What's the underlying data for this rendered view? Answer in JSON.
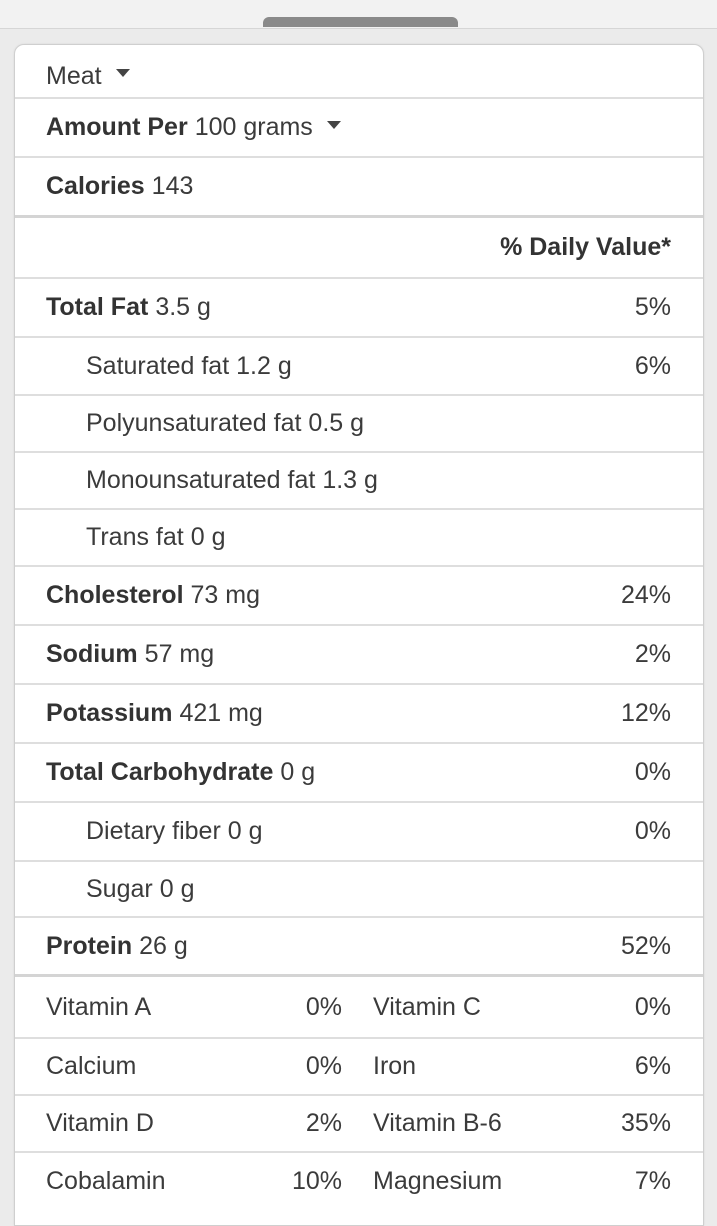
{
  "food_select": {
    "value": "Meat"
  },
  "serving": {
    "label": "Amount Per",
    "value": "100 grams"
  },
  "calories": {
    "label": "Calories",
    "value": "143"
  },
  "daily_value_header": "% Daily Value*",
  "nutrients": [
    {
      "label": "Total Fat",
      "amount": "3.5 g",
      "pct": "5%"
    },
    {
      "label": "Saturated fat",
      "amount": "1.2 g",
      "pct": "6%"
    },
    {
      "label": "Polyunsaturated fat",
      "amount": "0.5 g",
      "pct": ""
    },
    {
      "label": "Monounsaturated fat",
      "amount": "1.3 g",
      "pct": ""
    },
    {
      "label": "Trans fat",
      "amount": "0 g",
      "pct": ""
    },
    {
      "label": "Cholesterol",
      "amount": "73 mg",
      "pct": "24%"
    },
    {
      "label": "Sodium",
      "amount": "57 mg",
      "pct": "2%"
    },
    {
      "label": "Potassium",
      "amount": "421 mg",
      "pct": "12%"
    },
    {
      "label": "Total Carbohydrate",
      "amount": "0 g",
      "pct": "0%"
    },
    {
      "label": "Dietary fiber",
      "amount": "0 g",
      "pct": "0%"
    },
    {
      "label": "Sugar",
      "amount": "0 g",
      "pct": ""
    },
    {
      "label": "Protein",
      "amount": "26 g",
      "pct": "52%"
    }
  ],
  "vitamins": [
    {
      "left_name": "Vitamin A",
      "left_pct": "0%",
      "right_name": "Vitamin C",
      "right_pct": "0%"
    },
    {
      "left_name": "Calcium",
      "left_pct": "0%",
      "right_name": "Iron",
      "right_pct": "6%"
    },
    {
      "left_name": "Vitamin D",
      "left_pct": "2%",
      "right_name": "Vitamin B-6",
      "right_pct": "35%"
    },
    {
      "left_name": "Cobalamin",
      "left_pct": "10%",
      "right_name": "Magnesium",
      "right_pct": "7%"
    }
  ]
}
